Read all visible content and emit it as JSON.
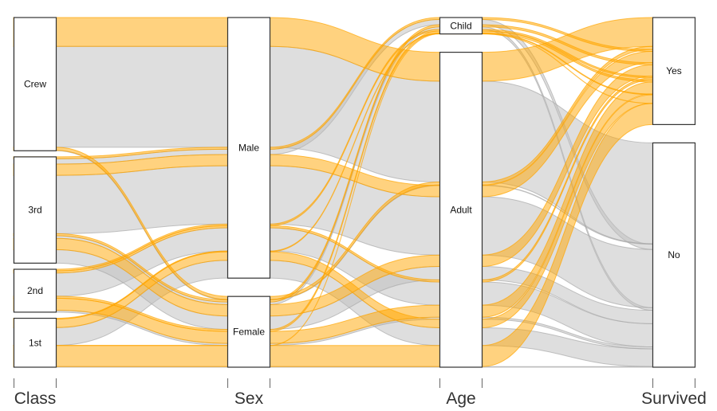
{
  "chart_data": {
    "type": "alluvial",
    "axes": [
      {
        "name": "Class",
        "strata": [
          "1st",
          "2nd",
          "3rd",
          "Crew"
        ]
      },
      {
        "name": "Sex",
        "strata": [
          "Female",
          "Male"
        ]
      },
      {
        "name": "Age",
        "strata": [
          "Adult",
          "Child"
        ]
      },
      {
        "name": "Survived",
        "strata": [
          "No",
          "Yes"
        ]
      }
    ],
    "stratum_order": "bottom-to-top",
    "colors": {
      "Yes": "#FFA500",
      "No": "#BEBEBE"
    },
    "flows": [
      [
        "3rd",
        "Male",
        "Child",
        "No",
        35
      ],
      [
        "3rd",
        "Female",
        "Child",
        "No",
        17
      ],
      [
        "1st",
        "Male",
        "Adult",
        "No",
        118
      ],
      [
        "2nd",
        "Male",
        "Adult",
        "No",
        154
      ],
      [
        "3rd",
        "Male",
        "Adult",
        "No",
        387
      ],
      [
        "Crew",
        "Male",
        "Adult",
        "No",
        670
      ],
      [
        "1st",
        "Female",
        "Adult",
        "No",
        4
      ],
      [
        "2nd",
        "Female",
        "Adult",
        "No",
        13
      ],
      [
        "3rd",
        "Female",
        "Adult",
        "No",
        89
      ],
      [
        "Crew",
        "Female",
        "Adult",
        "No",
        3
      ],
      [
        "1st",
        "Male",
        "Child",
        "Yes",
        5
      ],
      [
        "2nd",
        "Male",
        "Child",
        "Yes",
        11
      ],
      [
        "3rd",
        "Male",
        "Child",
        "Yes",
        13
      ],
      [
        "1st",
        "Female",
        "Child",
        "Yes",
        1
      ],
      [
        "2nd",
        "Female",
        "Child",
        "Yes",
        13
      ],
      [
        "3rd",
        "Female",
        "Child",
        "Yes",
        14
      ],
      [
        "1st",
        "Male",
        "Adult",
        "Yes",
        57
      ],
      [
        "2nd",
        "Male",
        "Adult",
        "Yes",
        14
      ],
      [
        "3rd",
        "Male",
        "Adult",
        "Yes",
        75
      ],
      [
        "Crew",
        "Male",
        "Adult",
        "Yes",
        192
      ],
      [
        "1st",
        "Female",
        "Adult",
        "Yes",
        140
      ],
      [
        "2nd",
        "Female",
        "Adult",
        "Yes",
        80
      ],
      [
        "3rd",
        "Female",
        "Adult",
        "Yes",
        76
      ],
      [
        "Crew",
        "Female",
        "Adult",
        "Yes",
        20
      ]
    ]
  }
}
